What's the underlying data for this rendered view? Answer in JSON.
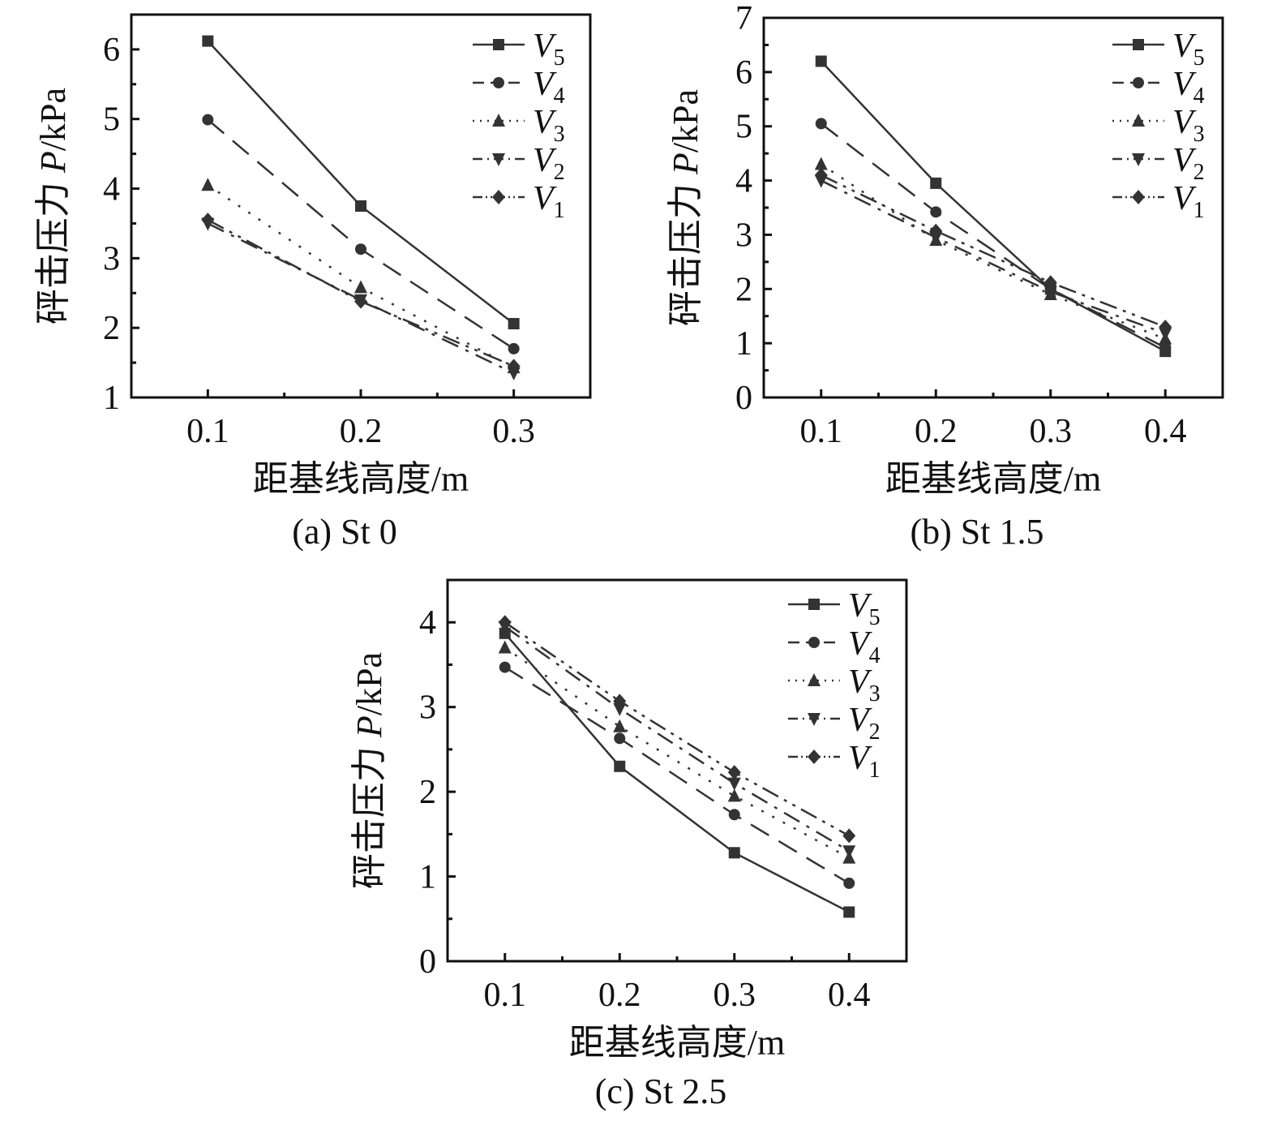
{
  "chart_data": [
    {
      "type": "line",
      "caption": "(a) St 0",
      "xlabel": "距基线高度/m",
      "ylabel": "砰击压力 P/kPa",
      "ylabel_prefix": "砰击压力 ",
      "ylabel_var": "P",
      "ylabel_unit": "/kPa",
      "x": [
        0.1,
        0.2,
        0.3
      ],
      "xlim": [
        0.05,
        0.35
      ],
      "ylim": [
        1,
        6.5
      ],
      "xticks": [
        "0.1",
        "0.2",
        "0.3"
      ],
      "yticks": [
        1,
        2,
        3,
        4,
        5,
        6
      ],
      "ytick_labels": [
        "1",
        "2",
        "3",
        "4",
        "5",
        "6"
      ],
      "grid": false,
      "legend_position": "top-right",
      "series": [
        {
          "name": "V",
          "sub": "5",
          "values": [
            6.12,
            3.75,
            2.06
          ]
        },
        {
          "name": "V",
          "sub": "4",
          "values": [
            4.99,
            3.13,
            1.7
          ]
        },
        {
          "name": "V",
          "sub": "3",
          "values": [
            4.05,
            2.58,
            1.43
          ]
        },
        {
          "name": "V",
          "sub": "2",
          "values": [
            3.5,
            2.4,
            1.35
          ]
        },
        {
          "name": "V",
          "sub": "1",
          "values": [
            3.55,
            2.38,
            1.45
          ]
        }
      ]
    },
    {
      "type": "line",
      "caption": "(b) St 1.5",
      "xlabel": "距基线高度/m",
      "ylabel": "砰击压力 P/kPa",
      "ylabel_prefix": "砰击压力 ",
      "ylabel_var": "P",
      "ylabel_unit": "/kPa",
      "x": [
        0.1,
        0.2,
        0.3,
        0.4
      ],
      "xlim": [
        0.05,
        0.45
      ],
      "ylim": [
        0,
        7
      ],
      "xticks": [
        "0.1",
        "0.2",
        "0.3",
        "0.4"
      ],
      "yticks": [
        0,
        1,
        2,
        3,
        4,
        5,
        6,
        7
      ],
      "ytick_labels": [
        "0",
        "1",
        "2",
        "3",
        "4",
        "5",
        "6",
        "7"
      ],
      "grid": false,
      "legend_position": "top-right",
      "series": [
        {
          "name": "V",
          "sub": "5",
          "values": [
            6.2,
            3.95,
            2.0,
            0.85
          ]
        },
        {
          "name": "V",
          "sub": "4",
          "values": [
            5.05,
            3.42,
            2.0,
            0.92
          ]
        },
        {
          "name": "V",
          "sub": "3",
          "values": [
            4.3,
            2.9,
            1.9,
            1.08
          ]
        },
        {
          "name": "V",
          "sub": "2",
          "values": [
            4.0,
            2.95,
            1.95,
            1.18
          ]
        },
        {
          "name": "V",
          "sub": "1",
          "values": [
            4.1,
            3.07,
            2.12,
            1.3
          ]
        }
      ]
    },
    {
      "type": "line",
      "caption": "(c) St 2.5",
      "xlabel": "距基线高度/m",
      "ylabel": "砰击压力 P/kPa",
      "ylabel_prefix": "砰击压力 ",
      "ylabel_var": "P",
      "ylabel_unit": "/kPa",
      "x": [
        0.1,
        0.2,
        0.3,
        0.4
      ],
      "xlim": [
        0.05,
        0.45
      ],
      "ylim": [
        0,
        4.5
      ],
      "xticks": [
        "0.1",
        "0.2",
        "0.3",
        "0.4"
      ],
      "yticks": [
        0,
        1,
        2,
        3,
        4
      ],
      "ytick_labels": [
        "0",
        "1",
        "2",
        "3",
        "4"
      ],
      "grid": false,
      "legend_position": "top-right",
      "series": [
        {
          "name": "V",
          "sub": "5",
          "values": [
            3.87,
            2.3,
            1.28,
            0.58
          ]
        },
        {
          "name": "V",
          "sub": "4",
          "values": [
            3.47,
            2.63,
            1.73,
            0.92
          ]
        },
        {
          "name": "V",
          "sub": "3",
          "values": [
            3.7,
            2.77,
            1.95,
            1.22
          ]
        },
        {
          "name": "V",
          "sub": "2",
          "values": [
            3.95,
            2.98,
            2.1,
            1.3
          ]
        },
        {
          "name": "V",
          "sub": "1",
          "values": [
            4.0,
            3.07,
            2.23,
            1.48
          ]
        }
      ]
    }
  ],
  "styles": {
    "line_color": "#333333",
    "marker_color": "#333333",
    "series_dash": [
      "none",
      "26 14",
      "3 12",
      "22 10 4 10",
      "22 8 4 8 4 8"
    ],
    "series_marker": [
      "square",
      "circle",
      "triangle-up",
      "triangle-down",
      "diamond"
    ]
  }
}
